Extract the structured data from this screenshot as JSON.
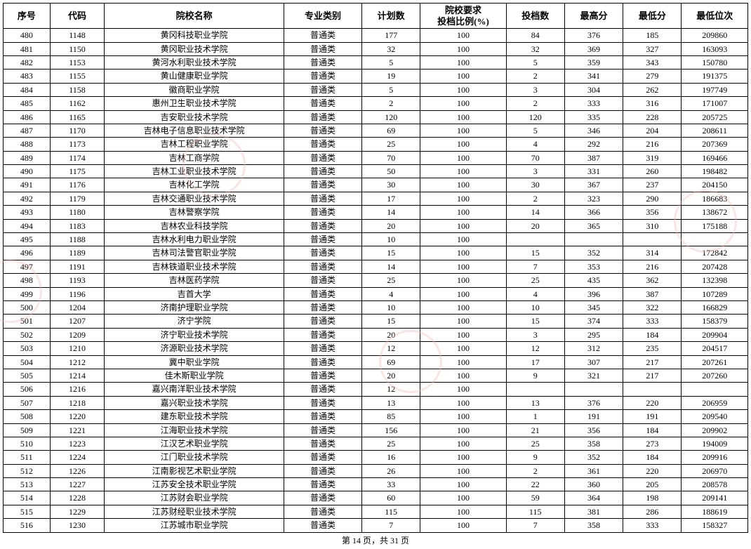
{
  "table": {
    "columns": [
      "序号",
      "代码",
      "院校名称",
      "专业类别",
      "计划数",
      "院校要求\n投档比例(%)",
      "投档数",
      "最高分",
      "最低分",
      "最低位次"
    ],
    "col_classes": [
      "col-seq",
      "col-code",
      "col-name",
      "col-type",
      "col-plan",
      "col-ratio",
      "col-sent",
      "col-high",
      "col-low",
      "col-rank"
    ],
    "rows": [
      [
        "480",
        "1148",
        "黄冈科技职业学院",
        "普通类",
        "177",
        "100",
        "84",
        "376",
        "185",
        "209860"
      ],
      [
        "481",
        "1150",
        "黄冈职业技术学院",
        "普通类",
        "32",
        "100",
        "32",
        "369",
        "327",
        "163093"
      ],
      [
        "482",
        "1153",
        "黄河水利职业技术学院",
        "普通类",
        "5",
        "100",
        "5",
        "359",
        "343",
        "150780"
      ],
      [
        "483",
        "1155",
        "黄山健康职业学院",
        "普通类",
        "19",
        "100",
        "2",
        "341",
        "279",
        "191375"
      ],
      [
        "484",
        "1158",
        "徽商职业学院",
        "普通类",
        "5",
        "100",
        "3",
        "304",
        "262",
        "197749"
      ],
      [
        "485",
        "1162",
        "惠州卫生职业技术学院",
        "普通类",
        "2",
        "100",
        "2",
        "333",
        "316",
        "171007"
      ],
      [
        "486",
        "1165",
        "吉安职业技术学院",
        "普通类",
        "120",
        "100",
        "120",
        "335",
        "228",
        "205725"
      ],
      [
        "487",
        "1170",
        "吉林电子信息职业技术学院",
        "普通类",
        "69",
        "100",
        "5",
        "346",
        "204",
        "208611"
      ],
      [
        "488",
        "1173",
        "吉林工程职业学院",
        "普通类",
        "25",
        "100",
        "4",
        "292",
        "216",
        "207369"
      ],
      [
        "489",
        "1174",
        "吉林工商学院",
        "普通类",
        "70",
        "100",
        "70",
        "387",
        "319",
        "169466"
      ],
      [
        "490",
        "1175",
        "吉林工业职业技术学院",
        "普通类",
        "50",
        "100",
        "3",
        "331",
        "260",
        "198482"
      ],
      [
        "491",
        "1176",
        "吉林化工学院",
        "普通类",
        "30",
        "100",
        "30",
        "367",
        "237",
        "204150"
      ],
      [
        "492",
        "1179",
        "吉林交通职业技术学院",
        "普通类",
        "17",
        "100",
        "2",
        "323",
        "290",
        "186683"
      ],
      [
        "493",
        "1180",
        "吉林警察学院",
        "普通类",
        "14",
        "100",
        "14",
        "366",
        "356",
        "138672"
      ],
      [
        "494",
        "1183",
        "吉林农业科技学院",
        "普通类",
        "20",
        "100",
        "20",
        "365",
        "310",
        "175188"
      ],
      [
        "495",
        "1188",
        "吉林水利电力职业学院",
        "普通类",
        "10",
        "100",
        "",
        "",
        "",
        ""
      ],
      [
        "496",
        "1189",
        "吉林司法警官职业学院",
        "普通类",
        "15",
        "100",
        "15",
        "352",
        "314",
        "172842"
      ],
      [
        "497",
        "1191",
        "吉林铁道职业技术学院",
        "普通类",
        "14",
        "100",
        "7",
        "353",
        "216",
        "207428"
      ],
      [
        "498",
        "1193",
        "吉林医药学院",
        "普通类",
        "25",
        "100",
        "25",
        "435",
        "362",
        "132398"
      ],
      [
        "499",
        "1196",
        "吉首大学",
        "普通类",
        "4",
        "100",
        "4",
        "396",
        "387",
        "107289"
      ],
      [
        "500",
        "1204",
        "济南护理职业学院",
        "普通类",
        "10",
        "100",
        "10",
        "345",
        "322",
        "166829"
      ],
      [
        "501",
        "1207",
        "济宁学院",
        "普通类",
        "15",
        "100",
        "15",
        "374",
        "333",
        "158379"
      ],
      [
        "502",
        "1209",
        "济宁职业技术学院",
        "普通类",
        "20",
        "100",
        "3",
        "295",
        "184",
        "209904"
      ],
      [
        "503",
        "1210",
        "济源职业技术学院",
        "普通类",
        "12",
        "100",
        "12",
        "312",
        "235",
        "204517"
      ],
      [
        "504",
        "1212",
        "冀中职业学院",
        "普通类",
        "69",
        "100",
        "17",
        "307",
        "217",
        "207261"
      ],
      [
        "505",
        "1214",
        "佳木斯职业学院",
        "普通类",
        "20",
        "100",
        "9",
        "321",
        "217",
        "207260"
      ],
      [
        "506",
        "1216",
        "嘉兴南洋职业技术学院",
        "普通类",
        "12",
        "100",
        "",
        "",
        "",
        ""
      ],
      [
        "507",
        "1218",
        "嘉兴职业技术学院",
        "普通类",
        "13",
        "100",
        "13",
        "376",
        "220",
        "206959"
      ],
      [
        "508",
        "1220",
        "建东职业技术学院",
        "普通类",
        "85",
        "100",
        "1",
        "191",
        "191",
        "209540"
      ],
      [
        "509",
        "1221",
        "江海职业技术学院",
        "普通类",
        "156",
        "100",
        "21",
        "356",
        "184",
        "209902"
      ],
      [
        "510",
        "1223",
        "江汉艺术职业学院",
        "普通类",
        "25",
        "100",
        "25",
        "358",
        "273",
        "194009"
      ],
      [
        "511",
        "1224",
        "江门职业技术学院",
        "普通类",
        "16",
        "100",
        "9",
        "352",
        "184",
        "209916"
      ],
      [
        "512",
        "1226",
        "江南影视艺术职业学院",
        "普通类",
        "26",
        "100",
        "2",
        "361",
        "220",
        "206970"
      ],
      [
        "513",
        "1227",
        "江苏安全技术职业学院",
        "普通类",
        "33",
        "100",
        "22",
        "360",
        "205",
        "208578"
      ],
      [
        "514",
        "1228",
        "江苏财会职业学院",
        "普通类",
        "60",
        "100",
        "59",
        "364",
        "198",
        "209141"
      ],
      [
        "515",
        "1229",
        "江苏财经职业技术学院",
        "普通类",
        "115",
        "100",
        "115",
        "381",
        "286",
        "188619"
      ],
      [
        "516",
        "1230",
        "江苏城市职业学院",
        "普通类",
        "7",
        "100",
        "7",
        "358",
        "333",
        "158327"
      ]
    ]
  },
  "pager": {
    "text": "第 14 页，共 31 页"
  },
  "style": {
    "border_color": "#000000",
    "background_color": "#ffffff",
    "header_fontsize": 13,
    "cell_fontsize": 12,
    "watermark_color": "#f0b5b5"
  }
}
